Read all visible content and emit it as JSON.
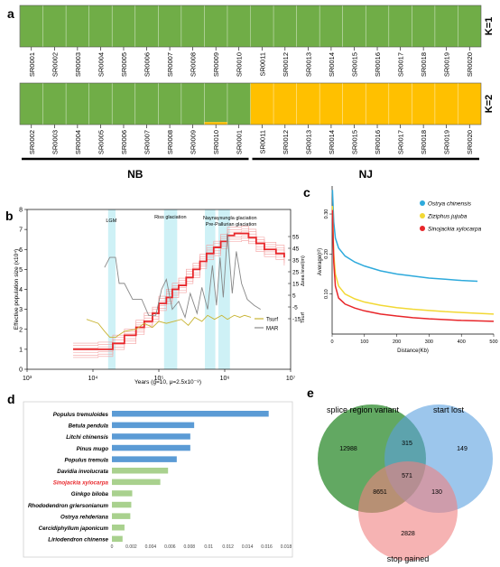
{
  "panels": {
    "a": "a",
    "b": "b",
    "c": "c",
    "d": "d",
    "e": "e"
  },
  "chart_data": [
    {
      "panel": "a",
      "type": "heatmap",
      "title": "",
      "rows": [
        {
          "label": "K=1",
          "samples": [
            "SR0001",
            "SR0002",
            "SR0003",
            "SR0004",
            "SR0005",
            "SR0006",
            "SR0007",
            "SR0008",
            "SR0009",
            "SR0010",
            "SR0011",
            "SR0012",
            "SR0013",
            "SR0014",
            "SR0015",
            "SR0016",
            "SR0017",
            "SR0018",
            "SR0019",
            "SR0020"
          ],
          "green_fraction": [
            1,
            1,
            1,
            1,
            1,
            1,
            1,
            1,
            1,
            1,
            1,
            1,
            1,
            1,
            1,
            1,
            1,
            1,
            1,
            1
          ]
        },
        {
          "label": "K=2",
          "samples": [
            "SR0002",
            "SR0003",
            "SR0004",
            "SR0005",
            "SR0006",
            "SR0007",
            "SR0008",
            "SR0009",
            "SR0010",
            "SR0001",
            "SR0011",
            "SR0012",
            "SR0013",
            "SR0014",
            "SR0015",
            "SR0016",
            "SR0017",
            "SR0018",
            "SR0019",
            "SR0020"
          ],
          "green_fraction": [
            1,
            1,
            1,
            1,
            1,
            1,
            1,
            1,
            0.94,
            1,
            0,
            0,
            0,
            0,
            0,
            0,
            0,
            0,
            0,
            0
          ]
        }
      ],
      "groups": [
        {
          "label": "NB",
          "from": 0,
          "to": 9
        },
        {
          "label": "NJ",
          "from": 10,
          "to": 19
        }
      ],
      "colors": {
        "green": "#70ad47",
        "yellow": "#ffc000"
      }
    },
    {
      "panel": "b",
      "type": "line",
      "xlabel": "Years (g=10, μ=2.5x10⁻⁸)",
      "ylabel": "Effective population size (x10⁴)",
      "ylabel_right_1": "Δsea level(m)",
      "ylabel_right_2": "Tsurf",
      "x_log": true,
      "xlim": [
        1000,
        10000000
      ],
      "ylim": [
        0,
        8
      ],
      "x_ticks": [
        "10³",
        "10⁴",
        "10⁵",
        "10⁶",
        "10⁷"
      ],
      "y_ticks": [
        "0",
        "1",
        "2",
        "3",
        "4",
        "5",
        "6",
        "7",
        "8"
      ],
      "right_ticks": [
        "55",
        "45",
        "35",
        "25",
        "15",
        "5",
        "-5",
        "-15"
      ],
      "annotations": [
        "LGM",
        "Riss glaciation",
        "Naynayxungla glaciation",
        "Pre-Pallurian glaciation"
      ],
      "shaded_regions": [
        [
          17000,
          22000
        ],
        [
          120000,
          190000
        ],
        [
          500000,
          720000
        ],
        [
          800000,
          1200000
        ]
      ],
      "legend": [
        {
          "name": "Tsurf",
          "color": "#c8b432"
        },
        {
          "name": "MAR",
          "color": "#888888"
        }
      ],
      "series": [
        {
          "name": "",
          "color": "#e8262a",
          "x": [
            5000,
            12000,
            20000,
            30000,
            45000,
            60000,
            80000,
            100000,
            130000,
            160000,
            200000,
            260000,
            330000,
            420000,
            530000,
            680000,
            870000,
            1100000,
            1400000,
            1800000,
            2300000,
            3000000,
            4000000,
            6000000,
            8000000
          ],
          "y": [
            1.0,
            1.0,
            1.3,
            1.7,
            2.1,
            2.4,
            2.8,
            3.3,
            3.6,
            4.0,
            4.2,
            4.6,
            5.0,
            5.4,
            5.8,
            6.1,
            6.4,
            6.7,
            6.8,
            6.8,
            6.6,
            6.3,
            6.0,
            5.8,
            5.6
          ]
        },
        {
          "name": "MAR",
          "color": "#888888",
          "x": [
            15000,
            18000,
            22000,
            25000,
            30000,
            40000,
            55000,
            70000,
            90000,
            110000,
            130000,
            160000,
            200000,
            250000,
            300000,
            380000,
            450000,
            550000,
            650000,
            750000,
            850000,
            950000,
            1100000,
            1300000,
            1500000,
            1800000,
            2200000,
            2800000,
            3500000
          ],
          "y": [
            5.1,
            5.6,
            5.6,
            4.3,
            4.3,
            3.5,
            3.5,
            2.7,
            2.7,
            4.0,
            4.5,
            3.0,
            3.4,
            2.6,
            3.8,
            2.8,
            4.1,
            3.0,
            5.2,
            3.2,
            5.6,
            3.6,
            6.8,
            3.8,
            5.9,
            4.3,
            3.5,
            3.2,
            3.0
          ]
        },
        {
          "name": "Tsurf",
          "color": "#c8b432",
          "x": [
            8000,
            12000,
            15000,
            18000,
            22000,
            30000,
            45000,
            60000,
            80000,
            100000,
            130000,
            170000,
            220000,
            280000,
            350000,
            450000,
            550000,
            700000,
            900000,
            1100000,
            1400000,
            1700000,
            2000000,
            2500000
          ],
          "y": [
            2.5,
            2.3,
            1.9,
            1.6,
            1.6,
            1.9,
            2.0,
            2.3,
            2.1,
            2.4,
            2.3,
            2.4,
            2.5,
            2.2,
            2.6,
            2.4,
            2.7,
            2.5,
            2.7,
            2.5,
            2.7,
            2.6,
            2.7,
            2.6
          ]
        }
      ]
    },
    {
      "panel": "c",
      "type": "line",
      "xlabel": "Distance(Kb)",
      "ylabel": "Average(r²)",
      "xlim": [
        0,
        500
      ],
      "ylim": [
        0,
        0.37
      ],
      "x_ticks": [
        "0",
        "100",
        "200",
        "300",
        "400",
        "500"
      ],
      "y_ticks": [
        "0.10",
        "0.20",
        "0.30"
      ],
      "legend_placement": "top-right",
      "series": [
        {
          "name": "Ostrya chinensis",
          "color": "#2eaadc",
          "x": [
            1,
            5,
            10,
            20,
            40,
            70,
            100,
            150,
            200,
            250,
            300,
            350,
            400,
            450
          ],
          "y": [
            0.36,
            0.28,
            0.24,
            0.215,
            0.195,
            0.18,
            0.17,
            0.158,
            0.15,
            0.145,
            0.14,
            0.137,
            0.134,
            0.132
          ]
        },
        {
          "name": "Ziziphus jujuba",
          "color": "#f2d834",
          "x": [
            1,
            5,
            10,
            20,
            40,
            70,
            100,
            150,
            200,
            250,
            300,
            350,
            400,
            450,
            500
          ],
          "y": [
            0.32,
            0.2,
            0.15,
            0.12,
            0.1,
            0.088,
            0.08,
            0.072,
            0.066,
            0.062,
            0.059,
            0.056,
            0.054,
            0.052,
            0.05
          ]
        },
        {
          "name": "Sinojackia xylocarpa",
          "color": "#e8262a",
          "x": [
            1,
            5,
            10,
            20,
            40,
            70,
            100,
            150,
            200,
            250,
            300,
            350,
            400,
            450,
            500
          ],
          "y": [
            0.31,
            0.18,
            0.12,
            0.09,
            0.075,
            0.065,
            0.058,
            0.05,
            0.045,
            0.041,
            0.038,
            0.036,
            0.034,
            0.033,
            0.032
          ]
        }
      ]
    },
    {
      "panel": "d",
      "type": "bar",
      "orientation": "horizontal",
      "categories": [
        "Populus tremuloides",
        "Betula pendula",
        "Litchi chinensis",
        "Pinus mugo",
        "Populus tremula",
        "Davidia involucrata",
        "Sinojackia xylocarpa",
        "Ginkgo biloba",
        "Rhododendron griersonianum",
        "Ostrya rehderiana",
        "Cercidiphyllum japonicum",
        "Liriodendron chinense"
      ],
      "values": [
        0.0162,
        0.0085,
        0.0081,
        0.0081,
        0.0067,
        0.0058,
        0.005,
        0.0021,
        0.002,
        0.0019,
        0.0013,
        0.0011
      ],
      "colors": [
        "#5b9bd5",
        "#5b9bd5",
        "#5b9bd5",
        "#5b9bd5",
        "#5b9bd5",
        "#a9d18e",
        "#a9d18e",
        "#a9d18e",
        "#a9d18e",
        "#a9d18e",
        "#a9d18e",
        "#a9d18e"
      ],
      "highlight": "Sinojackia xylocarpa",
      "highlight_color": "#e8262a",
      "xlim": [
        0,
        0.018
      ],
      "x_ticks": [
        "0",
        "0.002",
        "0.004",
        "0.006",
        "0.008",
        "0.01",
        "0.012",
        "0.014",
        "0.016",
        "0.018"
      ]
    },
    {
      "panel": "e",
      "type": "venn",
      "sets": [
        {
          "name": "splice region variant",
          "color": "#2e8b2e"
        },
        {
          "name": "start lost",
          "color": "#5aa0e0"
        },
        {
          "name": "stop gained",
          "color": "#f08080"
        }
      ],
      "regions": [
        {
          "sets": [
            "A"
          ],
          "value": 12988
        },
        {
          "sets": [
            "B"
          ],
          "value": 149
        },
        {
          "sets": [
            "C"
          ],
          "value": 2828
        },
        {
          "sets": [
            "A",
            "B"
          ],
          "value": 315
        },
        {
          "sets": [
            "A",
            "C"
          ],
          "value": 8651
        },
        {
          "sets": [
            "B",
            "C"
          ],
          "value": 130
        },
        {
          "sets": [
            "A",
            "B",
            "C"
          ],
          "value": 571
        }
      ]
    }
  ]
}
